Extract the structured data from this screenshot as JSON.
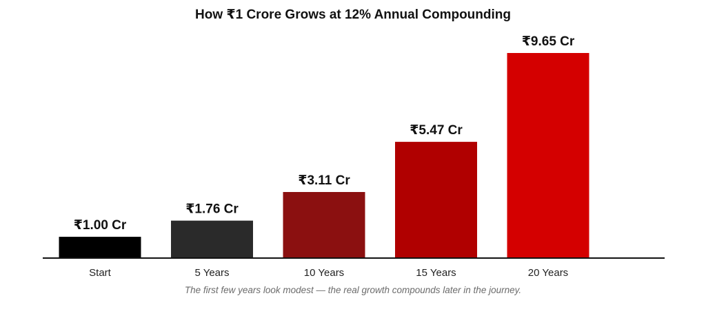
{
  "chart_data": {
    "type": "bar",
    "title": "How ₹1 Crore Grows at 12% Annual Compounding",
    "categories": [
      "Start",
      "5 Years",
      "10 Years",
      "15 Years",
      "20 Years"
    ],
    "values": [
      1.0,
      1.76,
      3.11,
      5.47,
      9.65
    ],
    "value_labels": [
      "₹1.00 Cr",
      "₹1.76 Cr",
      "₹3.11 Cr",
      "₹5.47 Cr",
      "₹9.65 Cr"
    ],
    "colors": [
      "#000000",
      "#2a2a2a",
      "#8b1010",
      "#b00000",
      "#d40000"
    ],
    "xlabel": "",
    "ylabel": "",
    "ylim": [
      0,
      9.65
    ],
    "grid": false,
    "legend": "none",
    "caption": "The first few years look modest — the real growth compounds later in the journey."
  }
}
